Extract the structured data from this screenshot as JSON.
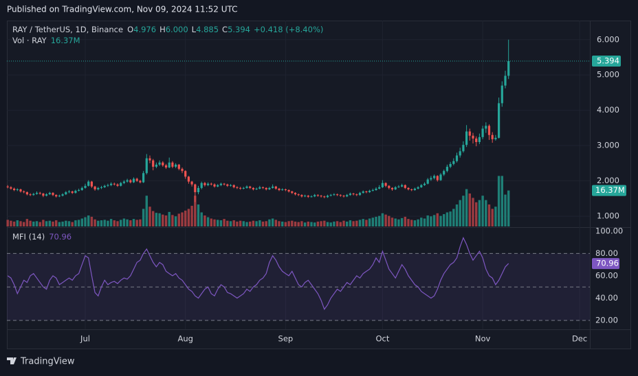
{
  "header": {
    "published": "Published on TradingView.com, Nov 09, 2024 11:52 UTC"
  },
  "footer": {
    "brand": "TradingView"
  },
  "chart_data": {
    "type": "candlestick",
    "legend": {
      "symbol": "RAY / TetherUS, 1D, Binance",
      "letters": [
        "O",
        "H",
        "L",
        "C"
      ],
      "values": [
        "4.976",
        "6.000",
        "4.885",
        "5.394"
      ],
      "change": "+0.418 (+8.40%)"
    },
    "volume_legend": {
      "name": "Vol · RAY",
      "value_label": "16.37M"
    },
    "mfi_legend": {
      "name": "MFI (14)"
    },
    "up_color": "#26a69a",
    "down_color": "#ef5350",
    "volume_up_color": "#1f7f76",
    "volume_down_color": "#9c3b40",
    "mfi_color": "#7e57c2",
    "ylim": [
      0.71,
      6.54
    ],
    "yticks": [
      {
        "value": 6,
        "label": "6.000"
      },
      {
        "value": 5,
        "label": "5.000"
      },
      {
        "value": 4,
        "label": "4.000"
      },
      {
        "value": 3,
        "label": "3.000"
      },
      {
        "value": 2,
        "label": "2.000"
      },
      {
        "value": 1,
        "label": "1.000"
      }
    ],
    "mfi_ylim": [
      12,
      103
    ],
    "mfi_yticks": [
      {
        "value": 100,
        "label": "100.00"
      },
      {
        "value": 80,
        "label": "80.00"
      },
      {
        "value": 60,
        "label": "60.00"
      },
      {
        "value": 40,
        "label": "40.00"
      },
      {
        "value": 20,
        "label": "20.00"
      }
    ],
    "mfi_band": {
      "upper": 80,
      "middle": 50,
      "lower": 20
    },
    "xticks": [
      {
        "value": 24,
        "label": "Jul"
      },
      {
        "value": 55,
        "label": "Aug"
      },
      {
        "value": 86,
        "label": "Sep"
      },
      {
        "value": 116,
        "label": "Oct"
      },
      {
        "value": 147,
        "label": "Nov"
      },
      {
        "value": 177,
        "label": "Dec"
      }
    ],
    "ohlc": [
      [
        1.84,
        1.88,
        1.79,
        1.82
      ],
      [
        1.82,
        1.85,
        1.75,
        1.78
      ],
      [
        1.78,
        1.81,
        1.71,
        1.74
      ],
      [
        1.74,
        1.79,
        1.71,
        1.76
      ],
      [
        1.76,
        1.78,
        1.67,
        1.7
      ],
      [
        1.7,
        1.73,
        1.65,
        1.68
      ],
      [
        1.68,
        1.7,
        1.59,
        1.62
      ],
      [
        1.62,
        1.65,
        1.57,
        1.6
      ],
      [
        1.6,
        1.66,
        1.58,
        1.63
      ],
      [
        1.63,
        1.7,
        1.61,
        1.66
      ],
      [
        1.66,
        1.69,
        1.61,
        1.64
      ],
      [
        1.64,
        1.66,
        1.54,
        1.58
      ],
      [
        1.58,
        1.65,
        1.56,
        1.62
      ],
      [
        1.62,
        1.69,
        1.6,
        1.66
      ],
      [
        1.66,
        1.68,
        1.57,
        1.6
      ],
      [
        1.6,
        1.62,
        1.53,
        1.56
      ],
      [
        1.56,
        1.61,
        1.54,
        1.58
      ],
      [
        1.58,
        1.65,
        1.56,
        1.62
      ],
      [
        1.62,
        1.71,
        1.6,
        1.68
      ],
      [
        1.68,
        1.74,
        1.65,
        1.7
      ],
      [
        1.7,
        1.72,
        1.63,
        1.66
      ],
      [
        1.66,
        1.75,
        1.64,
        1.72
      ],
      [
        1.72,
        1.78,
        1.7,
        1.74
      ],
      [
        1.74,
        1.84,
        1.72,
        1.8
      ],
      [
        1.8,
        1.92,
        1.78,
        1.86
      ],
      [
        1.86,
        2.02,
        1.84,
        1.98
      ],
      [
        1.98,
        2.0,
        1.8,
        1.84
      ],
      [
        1.84,
        1.86,
        1.72,
        1.76
      ],
      [
        1.76,
        1.83,
        1.73,
        1.8
      ],
      [
        1.8,
        1.86,
        1.77,
        1.82
      ],
      [
        1.82,
        1.89,
        1.8,
        1.86
      ],
      [
        1.86,
        1.92,
        1.83,
        1.88
      ],
      [
        1.88,
        1.96,
        1.85,
        1.92
      ],
      [
        1.92,
        1.95,
        1.87,
        1.9
      ],
      [
        1.9,
        1.93,
        1.83,
        1.86
      ],
      [
        1.86,
        1.97,
        1.84,
        1.94
      ],
      [
        1.94,
        2.02,
        1.91,
        1.98
      ],
      [
        1.98,
        2.06,
        1.95,
        2.02
      ],
      [
        2.02,
        2.05,
        1.93,
        1.96
      ],
      [
        1.96,
        2.1,
        1.94,
        2.06
      ],
      [
        2.06,
        2.09,
        1.97,
        2.0
      ],
      [
        2.0,
        2.03,
        1.93,
        1.96
      ],
      [
        1.96,
        2.28,
        1.94,
        2.22
      ],
      [
        2.22,
        2.76,
        2.18,
        2.64
      ],
      [
        2.64,
        2.72,
        2.5,
        2.58
      ],
      [
        2.58,
        2.62,
        2.3,
        2.4
      ],
      [
        2.4,
        2.52,
        2.36,
        2.46
      ],
      [
        2.46,
        2.58,
        2.42,
        2.52
      ],
      [
        2.52,
        2.56,
        2.4,
        2.44
      ],
      [
        2.44,
        2.48,
        2.34,
        2.38
      ],
      [
        2.38,
        2.66,
        2.36,
        2.52
      ],
      [
        2.52,
        2.56,
        2.36,
        2.4
      ],
      [
        2.4,
        2.5,
        2.36,
        2.46
      ],
      [
        2.46,
        2.48,
        2.3,
        2.34
      ],
      [
        2.34,
        2.38,
        2.22,
        2.28
      ],
      [
        2.28,
        2.3,
        2.06,
        2.12
      ],
      [
        2.12,
        2.14,
        1.92,
        1.98
      ],
      [
        1.98,
        2.0,
        1.84,
        1.9
      ],
      [
        1.9,
        1.92,
        1.4,
        1.68
      ],
      [
        1.68,
        1.86,
        1.62,
        1.8
      ],
      [
        1.8,
        1.98,
        1.76,
        1.94
      ],
      [
        1.94,
        1.97,
        1.84,
        1.88
      ],
      [
        1.88,
        1.96,
        1.85,
        1.92
      ],
      [
        1.92,
        1.95,
        1.87,
        1.9
      ],
      [
        1.9,
        1.93,
        1.81,
        1.84
      ],
      [
        1.84,
        1.91,
        1.82,
        1.88
      ],
      [
        1.88,
        1.95,
        1.85,
        1.92
      ],
      [
        1.92,
        1.94,
        1.87,
        1.9
      ],
      [
        1.9,
        1.92,
        1.83,
        1.86
      ],
      [
        1.86,
        1.91,
        1.84,
        1.88
      ],
      [
        1.88,
        1.9,
        1.79,
        1.82
      ],
      [
        1.82,
        1.85,
        1.77,
        1.8
      ],
      [
        1.8,
        1.83,
        1.75,
        1.78
      ],
      [
        1.78,
        1.83,
        1.76,
        1.8
      ],
      [
        1.8,
        1.87,
        1.78,
        1.84
      ],
      [
        1.84,
        1.86,
        1.77,
        1.8
      ],
      [
        1.8,
        1.82,
        1.73,
        1.76
      ],
      [
        1.76,
        1.81,
        1.74,
        1.78
      ],
      [
        1.78,
        1.86,
        1.76,
        1.82
      ],
      [
        1.82,
        1.84,
        1.77,
        1.8
      ],
      [
        1.8,
        1.82,
        1.73,
        1.76
      ],
      [
        1.76,
        1.83,
        1.74,
        1.8
      ],
      [
        1.8,
        1.9,
        1.78,
        1.84
      ],
      [
        1.84,
        1.86,
        1.75,
        1.78
      ],
      [
        1.78,
        1.8,
        1.71,
        1.74
      ],
      [
        1.74,
        1.79,
        1.72,
        1.76
      ],
      [
        1.76,
        1.78,
        1.71,
        1.74
      ],
      [
        1.74,
        1.76,
        1.67,
        1.7
      ],
      [
        1.7,
        1.72,
        1.63,
        1.66
      ],
      [
        1.66,
        1.68,
        1.59,
        1.62
      ],
      [
        1.62,
        1.64,
        1.57,
        1.6
      ],
      [
        1.6,
        1.62,
        1.53,
        1.56
      ],
      [
        1.56,
        1.61,
        1.54,
        1.58
      ],
      [
        1.58,
        1.6,
        1.52,
        1.55
      ],
      [
        1.55,
        1.59,
        1.53,
        1.56
      ],
      [
        1.56,
        1.63,
        1.54,
        1.6
      ],
      [
        1.6,
        1.62,
        1.55,
        1.58
      ],
      [
        1.58,
        1.6,
        1.53,
        1.56
      ],
      [
        1.56,
        1.58,
        1.51,
        1.54
      ],
      [
        1.54,
        1.61,
        1.52,
        1.58
      ],
      [
        1.58,
        1.63,
        1.56,
        1.6
      ],
      [
        1.6,
        1.65,
        1.58,
        1.62
      ],
      [
        1.62,
        1.64,
        1.57,
        1.6
      ],
      [
        1.6,
        1.62,
        1.55,
        1.58
      ],
      [
        1.58,
        1.6,
        1.53,
        1.56
      ],
      [
        1.56,
        1.63,
        1.54,
        1.6
      ],
      [
        1.6,
        1.67,
        1.58,
        1.64
      ],
      [
        1.64,
        1.66,
        1.59,
        1.62
      ],
      [
        1.62,
        1.64,
        1.57,
        1.6
      ],
      [
        1.6,
        1.69,
        1.58,
        1.66
      ],
      [
        1.66,
        1.73,
        1.64,
        1.7
      ],
      [
        1.7,
        1.72,
        1.65,
        1.68
      ],
      [
        1.68,
        1.75,
        1.66,
        1.72
      ],
      [
        1.72,
        1.78,
        1.7,
        1.74
      ],
      [
        1.74,
        1.82,
        1.72,
        1.78
      ],
      [
        1.78,
        1.88,
        1.76,
        1.82
      ],
      [
        1.82,
        2.02,
        1.8,
        1.94
      ],
      [
        1.94,
        1.96,
        1.82,
        1.86
      ],
      [
        1.86,
        1.88,
        1.76,
        1.8
      ],
      [
        1.8,
        1.82,
        1.72,
        1.76
      ],
      [
        1.76,
        1.85,
        1.74,
        1.82
      ],
      [
        1.82,
        1.88,
        1.8,
        1.84
      ],
      [
        1.84,
        1.92,
        1.82,
        1.88
      ],
      [
        1.88,
        1.9,
        1.77,
        1.8
      ],
      [
        1.8,
        1.82,
        1.73,
        1.76
      ],
      [
        1.76,
        1.78,
        1.71,
        1.74
      ],
      [
        1.74,
        1.81,
        1.72,
        1.78
      ],
      [
        1.78,
        1.85,
        1.76,
        1.82
      ],
      [
        1.82,
        1.91,
        1.8,
        1.88
      ],
      [
        1.88,
        1.96,
        1.86,
        1.92
      ],
      [
        1.92,
        2.08,
        1.9,
        2.04
      ],
      [
        2.04,
        2.14,
        2.0,
        2.08
      ],
      [
        2.08,
        2.18,
        2.04,
        2.14
      ],
      [
        2.14,
        2.16,
        1.98,
        2.02
      ],
      [
        2.02,
        2.22,
        2.0,
        2.18
      ],
      [
        2.18,
        2.32,
        2.14,
        2.28
      ],
      [
        2.28,
        2.46,
        2.24,
        2.4
      ],
      [
        2.4,
        2.54,
        2.36,
        2.48
      ],
      [
        2.48,
        2.64,
        2.44,
        2.56
      ],
      [
        2.56,
        2.8,
        2.52,
        2.72
      ],
      [
        2.72,
        2.94,
        2.66,
        2.84
      ],
      [
        2.84,
        3.12,
        2.8,
        3.02
      ],
      [
        3.02,
        3.58,
        2.96,
        3.4
      ],
      [
        3.4,
        3.48,
        3.14,
        3.28
      ],
      [
        3.28,
        3.36,
        3.06,
        3.2
      ],
      [
        3.2,
        3.26,
        2.98,
        3.1
      ],
      [
        3.1,
        3.34,
        3.04,
        3.24
      ],
      [
        3.24,
        3.56,
        3.18,
        3.48
      ],
      [
        3.48,
        3.66,
        3.36,
        3.56
      ],
      [
        3.56,
        3.6,
        3.16,
        3.3
      ],
      [
        3.3,
        3.38,
        3.08,
        3.18
      ],
      [
        3.18,
        3.3,
        3.14,
        3.22
      ],
      [
        3.22,
        4.36,
        3.2,
        4.2
      ],
      [
        4.2,
        4.82,
        4.1,
        4.7
      ],
      [
        4.7,
        5.12,
        4.62,
        4.976
      ],
      [
        4.976,
        6.0,
        4.885,
        5.394
      ]
    ],
    "volume": [
      3.0,
      2.6,
      2.2,
      2.8,
      2.4,
      2.0,
      3.4,
      2.6,
      2.2,
      2.4,
      2.0,
      3.0,
      2.4,
      2.6,
      2.2,
      2.8,
      2.0,
      2.2,
      2.6,
      2.4,
      2.0,
      2.8,
      3.0,
      3.6,
      4.2,
      5.0,
      4.4,
      3.2,
      2.6,
      2.8,
      3.0,
      2.6,
      3.4,
      2.8,
      2.4,
      3.0,
      3.6,
      3.2,
      2.8,
      3.4,
      3.0,
      3.2,
      8.0,
      14.0,
      9.0,
      7.0,
      6.2,
      6.0,
      5.4,
      5.0,
      6.6,
      5.2,
      4.6,
      5.8,
      6.4,
      7.2,
      8.0,
      9.4,
      14.0,
      10.0,
      6.4,
      5.0,
      4.2,
      3.6,
      3.2,
      3.0,
      2.8,
      3.4,
      2.6,
      2.4,
      2.8,
      2.2,
      2.6,
      2.4,
      2.0,
      2.2,
      2.6,
      2.4,
      2.8,
      2.2,
      2.4,
      3.2,
      3.6,
      3.0,
      2.4,
      2.2,
      2.0,
      2.4,
      2.6,
      2.2,
      2.0,
      2.4,
      1.8,
      2.2,
      2.0,
      1.8,
      2.2,
      2.4,
      2.6,
      2.0,
      1.8,
      2.2,
      2.4,
      2.0,
      2.6,
      2.2,
      2.8,
      2.4,
      2.6,
      3.0,
      3.4,
      3.0,
      3.6,
      4.0,
      4.4,
      4.8,
      6.0,
      5.4,
      4.8,
      4.0,
      3.6,
      3.2,
      3.8,
      4.4,
      3.4,
      3.0,
      2.8,
      3.2,
      4.0,
      3.6,
      5.0,
      4.6,
      5.2,
      6.0,
      4.8,
      5.6,
      6.4,
      6.8,
      8.0,
      10.0,
      12.0,
      14.0,
      17.0,
      15.0,
      13.0,
      11.0,
      12.0,
      14.0,
      12.0,
      10.0,
      8.0,
      9.0,
      23.0,
      23.0,
      14.5,
      16.37
    ],
    "mfi": [
      60,
      58,
      52,
      44,
      50,
      56,
      54,
      60,
      62,
      58,
      54,
      50,
      48,
      56,
      60,
      58,
      52,
      54,
      56,
      58,
      56,
      60,
      62,
      70,
      78,
      76,
      60,
      45,
      42,
      50,
      56,
      52,
      54,
      55,
      53,
      56,
      58,
      57,
      60,
      66,
      72,
      74,
      80,
      84,
      78,
      72,
      68,
      72,
      70,
      64,
      62,
      60,
      62,
      58,
      56,
      52,
      48,
      46,
      42,
      40,
      44,
      48,
      50,
      44,
      42,
      48,
      52,
      50,
      45,
      44,
      42,
      40,
      42,
      44,
      48,
      46,
      50,
      52,
      56,
      58,
      62,
      72,
      78,
      74,
      68,
      64,
      62,
      60,
      64,
      58,
      52,
      50,
      54,
      56,
      52,
      48,
      44,
      38,
      30,
      34,
      40,
      44,
      48,
      46,
      50,
      54,
      52,
      56,
      60,
      58,
      62,
      64,
      66,
      70,
      76,
      72,
      82,
      74,
      66,
      62,
      58,
      64,
      70,
      66,
      60,
      56,
      52,
      50,
      46,
      44,
      42,
      40,
      42,
      48,
      56,
      62,
      66,
      70,
      72,
      76,
      86,
      94,
      88,
      80,
      74,
      78,
      82,
      76,
      66,
      60,
      58,
      52,
      56,
      62,
      68,
      70.96
    ]
  }
}
